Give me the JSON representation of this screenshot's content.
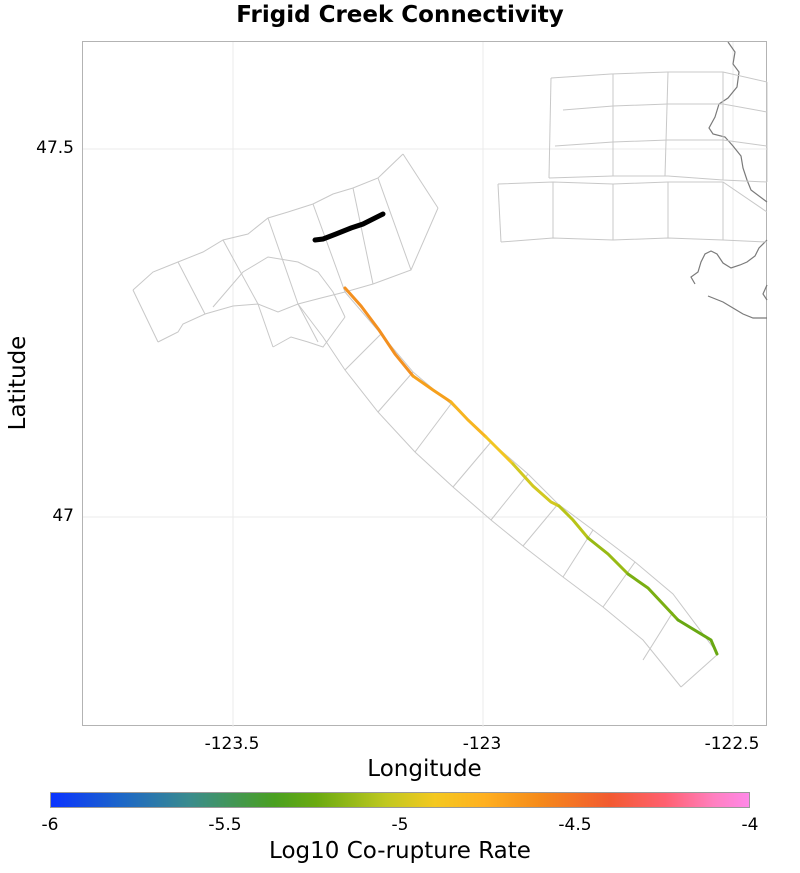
{
  "title": "Frigid Creek Connectivity",
  "x_axis": {
    "label": "Longitude",
    "ticks": [
      "-123.5",
      "-123",
      "-122.5"
    ]
  },
  "y_axis": {
    "label": "Latitude",
    "ticks": [
      "47.5",
      "47"
    ]
  },
  "colorbar": {
    "label": "Log10 Co-rupture Rate",
    "ticks": [
      "-6",
      "-5.5",
      "-5",
      "-4.5",
      "-4"
    ]
  },
  "colors": {
    "source_fault": "#000000",
    "fault_outline": "#c8c8c8",
    "coastline": "#7a7a7a",
    "grid": "#ebebeb"
  }
}
